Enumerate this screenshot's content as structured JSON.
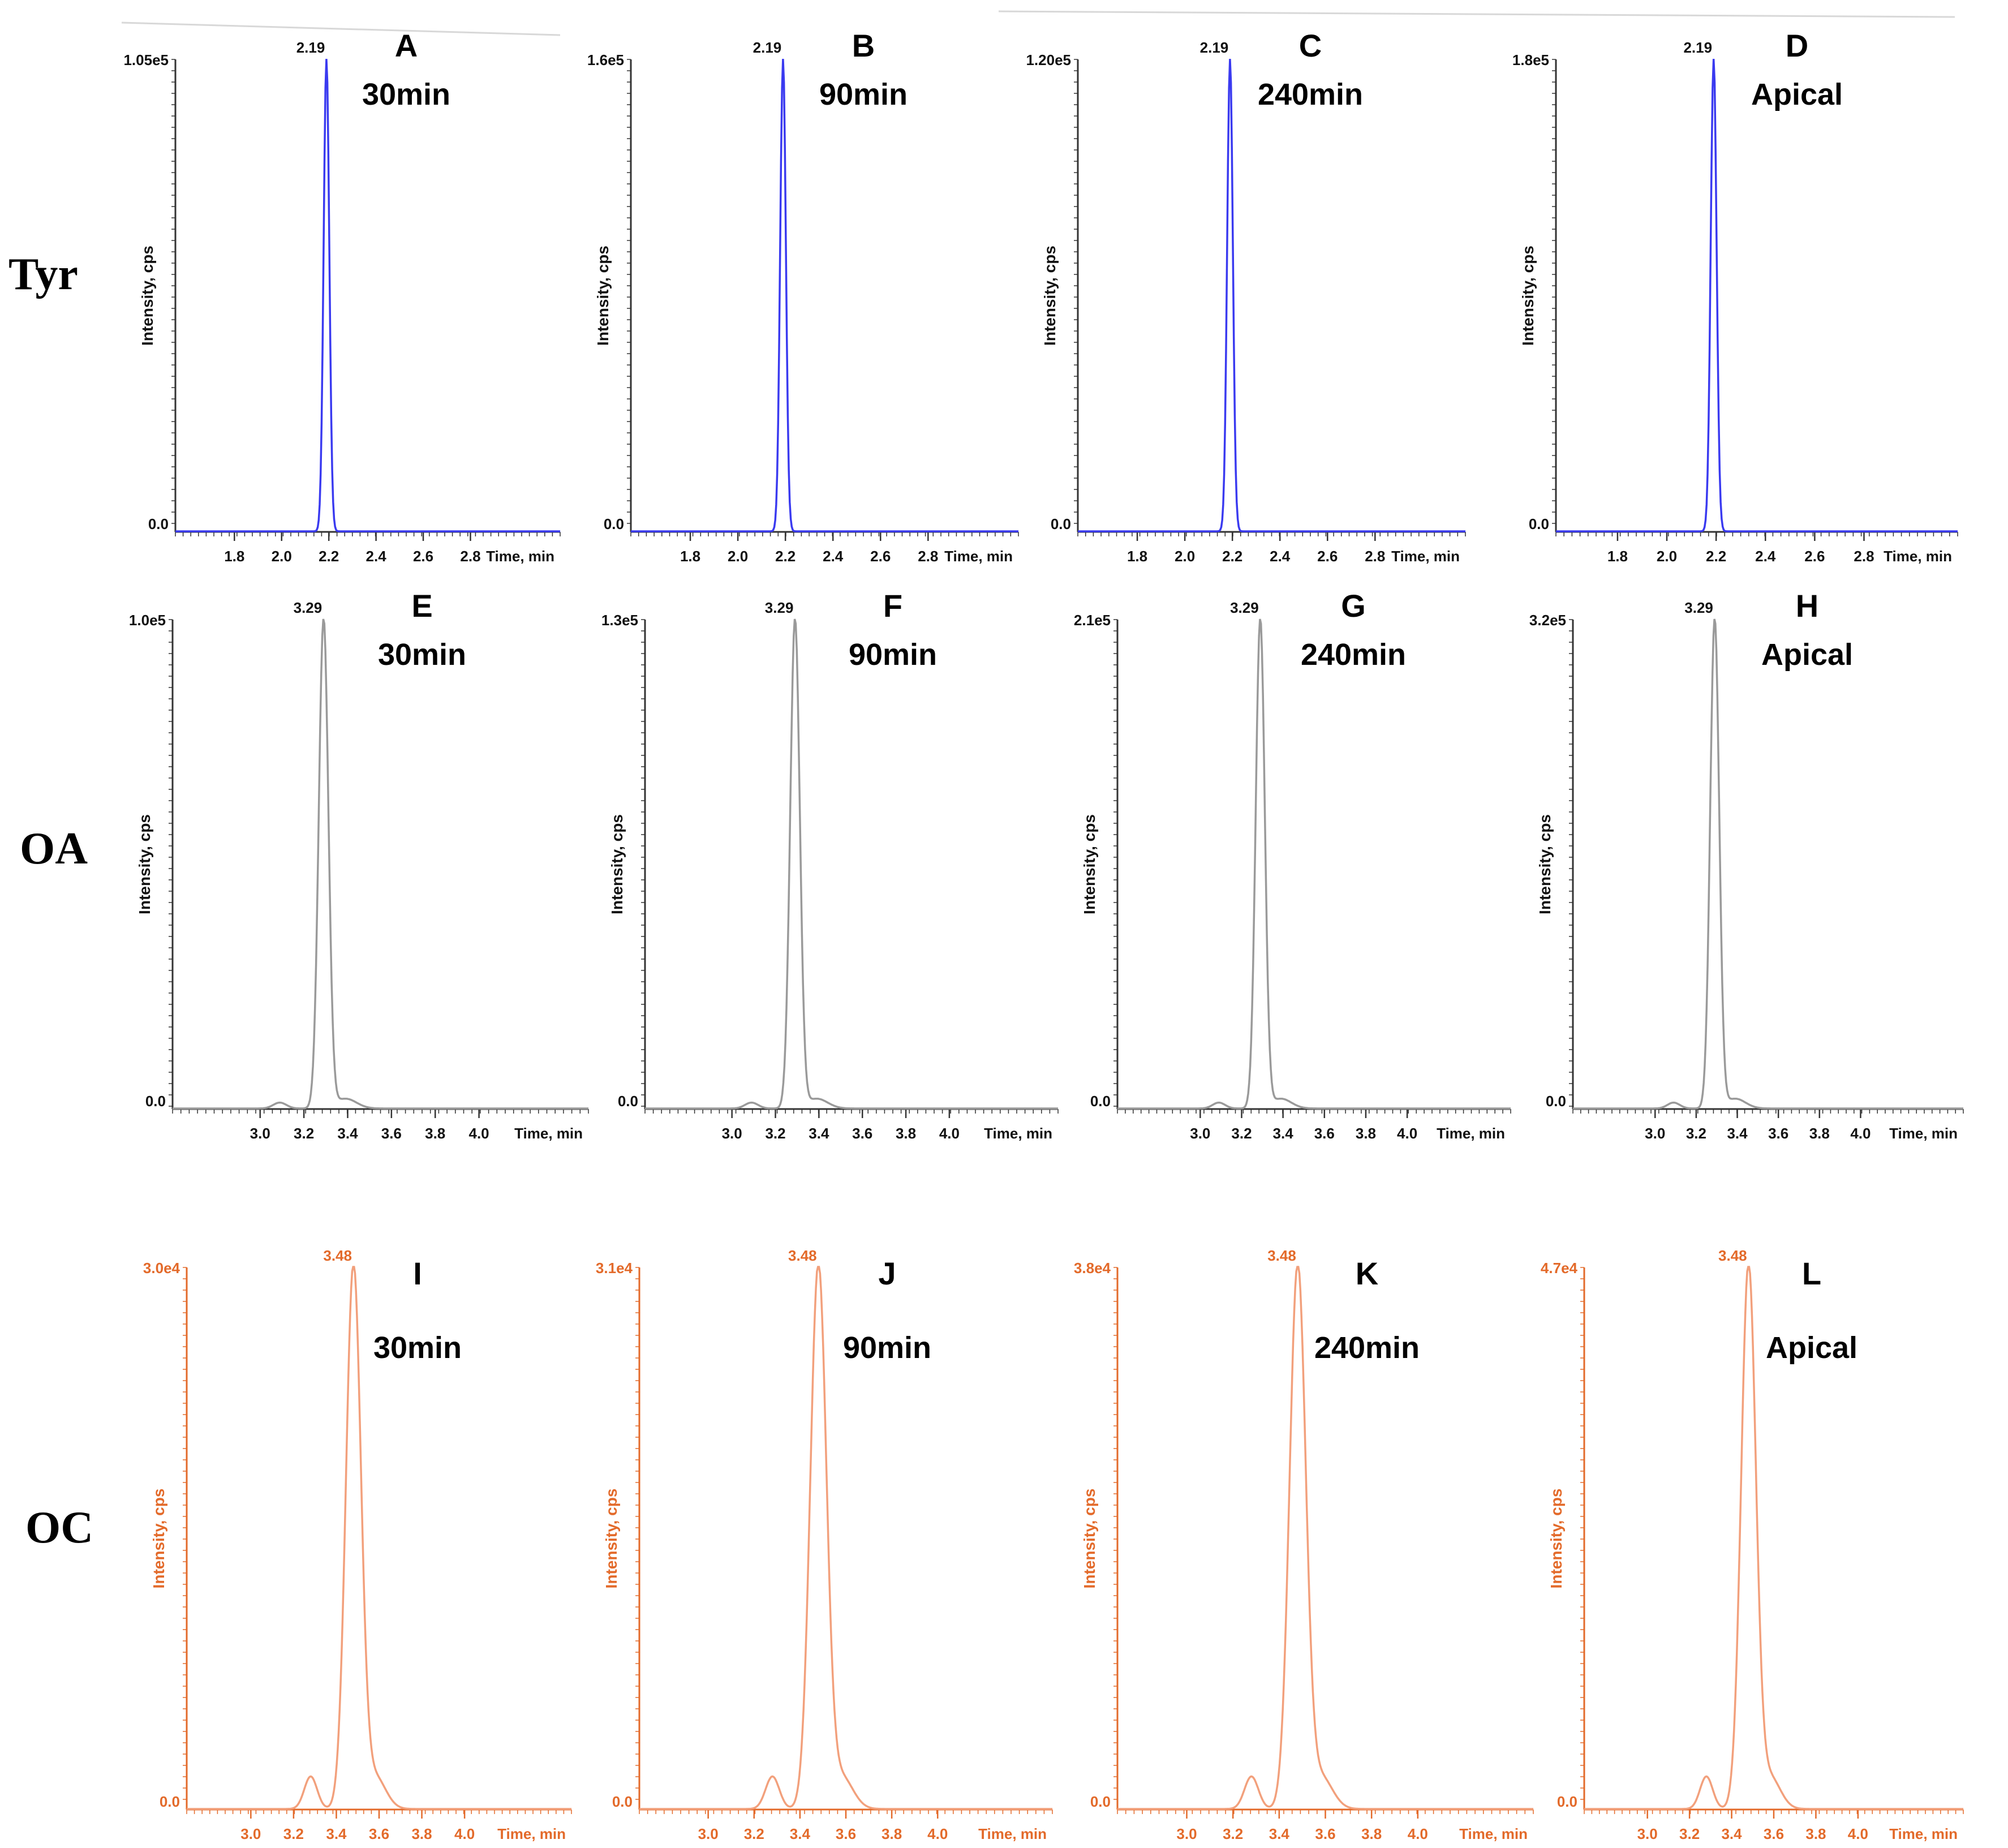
{
  "rows": [
    {
      "label": "Tyr",
      "color": "#3a3af0",
      "peak_time_label": "2.19",
      "peak_time": 2.19,
      "x_min": 1.55,
      "x_max": 3.18,
      "x_ticks": [
        "1.8",
        "2.0",
        "2.2",
        "2.4",
        "2.6",
        "2.8"
      ],
      "sigma": 0.012,
      "tail": 0.0
    },
    {
      "label": "OA",
      "color": "#9a9a9a",
      "peak_time_label": "3.29",
      "peak_time": 3.29,
      "x_min": 2.6,
      "x_max": 4.5,
      "x_ticks": [
        "3.0",
        "3.2",
        "3.4",
        "3.6",
        "3.8",
        "4.0"
      ],
      "sigma": 0.022,
      "tail": 0.02
    },
    {
      "label": "OC",
      "color": "#f2a07c",
      "peak_time_label": "3.48",
      "peak_time": 3.48,
      "x_min": 2.7,
      "x_max": 4.5,
      "x_ticks": [
        "3.0",
        "3.2",
        "3.4",
        "3.6",
        "3.8",
        "4.0"
      ],
      "sigma": 0.035,
      "tail": 0.06
    }
  ],
  "chart_data": [
    {
      "type": "line",
      "panel": "A",
      "condition": "30min",
      "row": "Tyr",
      "xlabel": "Time, min",
      "ylabel": "Intensity, cps",
      "y_max_label": "1.05e5",
      "y_zero_label": "0.0",
      "ylim": [
        0,
        105000
      ],
      "peak": {
        "x": 2.19,
        "y": 105000,
        "label": "2.19"
      },
      "x_ticks": [
        1.8,
        2.0,
        2.2,
        2.4,
        2.6,
        2.8
      ]
    },
    {
      "type": "line",
      "panel": "B",
      "condition": "90min",
      "row": "Tyr",
      "xlabel": "Time, min",
      "ylabel": "Intensity, cps",
      "y_max_label": "1.6e5",
      "y_zero_label": "0.0",
      "ylim": [
        0,
        160000
      ],
      "peak": {
        "x": 2.19,
        "y": 160000,
        "label": "2.19"
      },
      "x_ticks": [
        1.8,
        2.0,
        2.2,
        2.4,
        2.6,
        2.8
      ]
    },
    {
      "type": "line",
      "panel": "C",
      "condition": "240min",
      "row": "Tyr",
      "xlabel": "Time, min",
      "ylabel": "Intensity, cps",
      "y_max_label": "1.20e5",
      "y_zero_label": "0.0",
      "ylim": [
        0,
        120000
      ],
      "peak": {
        "x": 2.19,
        "y": 120000,
        "label": "2.19"
      },
      "x_ticks": [
        1.8,
        2.0,
        2.2,
        2.4,
        2.6,
        2.8
      ]
    },
    {
      "type": "line",
      "panel": "D",
      "condition": "Apical",
      "row": "Tyr",
      "xlabel": "Time, min",
      "ylabel": "Intensity, cps",
      "y_max_label": "1.8e5",
      "y_zero_label": "0.0",
      "ylim": [
        0,
        180000
      ],
      "peak": {
        "x": 2.19,
        "y": 180000,
        "label": "2.19"
      },
      "x_ticks": [
        1.8,
        2.0,
        2.2,
        2.4,
        2.6,
        2.8
      ]
    },
    {
      "type": "line",
      "panel": "E",
      "condition": "30min",
      "row": "OA",
      "xlabel": "Time, min",
      "ylabel": "Intensity, cps",
      "y_max_label": "1.0e5",
      "y_zero_label": "0.0",
      "ylim": [
        0,
        100000
      ],
      "peak": {
        "x": 3.29,
        "y": 100000,
        "label": "3.29"
      },
      "x_ticks": [
        3.0,
        3.2,
        3.4,
        3.6,
        3.8,
        4.0
      ]
    },
    {
      "type": "line",
      "panel": "F",
      "condition": "90min",
      "row": "OA",
      "xlabel": "Time, min",
      "ylabel": "Intensity, cps",
      "y_max_label": "1.3e5",
      "y_zero_label": "0.0",
      "ylim": [
        0,
        130000
      ],
      "peak": {
        "x": 3.29,
        "y": 130000,
        "label": "3.29"
      },
      "x_ticks": [
        3.0,
        3.2,
        3.4,
        3.6,
        3.8,
        4.0
      ]
    },
    {
      "type": "line",
      "panel": "G",
      "condition": "240min",
      "row": "OA",
      "xlabel": "Time, min",
      "ylabel": "Intensity, cps",
      "y_max_label": "2.1e5",
      "y_zero_label": "0.0",
      "ylim": [
        0,
        210000
      ],
      "peak": {
        "x": 3.29,
        "y": 210000,
        "label": "3.29"
      },
      "x_ticks": [
        3.0,
        3.2,
        3.4,
        3.6,
        3.8,
        4.0
      ]
    },
    {
      "type": "line",
      "panel": "H",
      "condition": "Apical",
      "row": "OA",
      "xlabel": "Time, min",
      "ylabel": "Intensity, cps",
      "y_max_label": "3.2e5",
      "y_zero_label": "0.0",
      "ylim": [
        0,
        320000
      ],
      "peak": {
        "x": 3.29,
        "y": 320000,
        "label": "3.29"
      },
      "x_ticks": [
        3.0,
        3.2,
        3.4,
        3.6,
        3.8,
        4.0
      ]
    },
    {
      "type": "line",
      "panel": "I",
      "condition": "30min",
      "row": "OC",
      "xlabel": "Time, min",
      "ylabel": "Intensity, cps",
      "y_max_label": "3.0e4",
      "y_zero_label": "0.0",
      "ylim": [
        0,
        30000
      ],
      "peak": {
        "x": 3.48,
        "y": 30000,
        "label": "3.48"
      },
      "x_ticks": [
        3.0,
        3.2,
        3.4,
        3.6,
        3.8,
        4.0
      ]
    },
    {
      "type": "line",
      "panel": "J",
      "condition": "90min",
      "row": "OC",
      "xlabel": "Time, min",
      "ylabel": "Intensity, cps",
      "y_max_label": "3.1e4",
      "y_zero_label": "0.0",
      "ylim": [
        0,
        31000
      ],
      "peak": {
        "x": 3.48,
        "y": 31000,
        "label": "3.48"
      },
      "x_ticks": [
        3.0,
        3.2,
        3.4,
        3.6,
        3.8,
        4.0
      ]
    },
    {
      "type": "line",
      "panel": "K",
      "condition": "240min",
      "row": "OC",
      "xlabel": "Time, min",
      "ylabel": "Intensity, cps",
      "y_max_label": "3.8e4",
      "y_zero_label": "0.0",
      "ylim": [
        0,
        38000
      ],
      "peak": {
        "x": 3.48,
        "y": 38000,
        "label": "3.48"
      },
      "x_ticks": [
        3.0,
        3.2,
        3.4,
        3.6,
        3.8,
        4.0
      ]
    },
    {
      "type": "line",
      "panel": "L",
      "condition": "Apical",
      "row": "OC",
      "xlabel": "Time, min",
      "ylabel": "Intensity, cps",
      "y_max_label": "4.7e4",
      "y_zero_label": "0.0",
      "ylim": [
        0,
        47000
      ],
      "peak": {
        "x": 3.48,
        "y": 47000,
        "label": "3.48"
      },
      "x_ticks": [
        3.0,
        3.2,
        3.4,
        3.6,
        3.8,
        4.0
      ]
    }
  ]
}
